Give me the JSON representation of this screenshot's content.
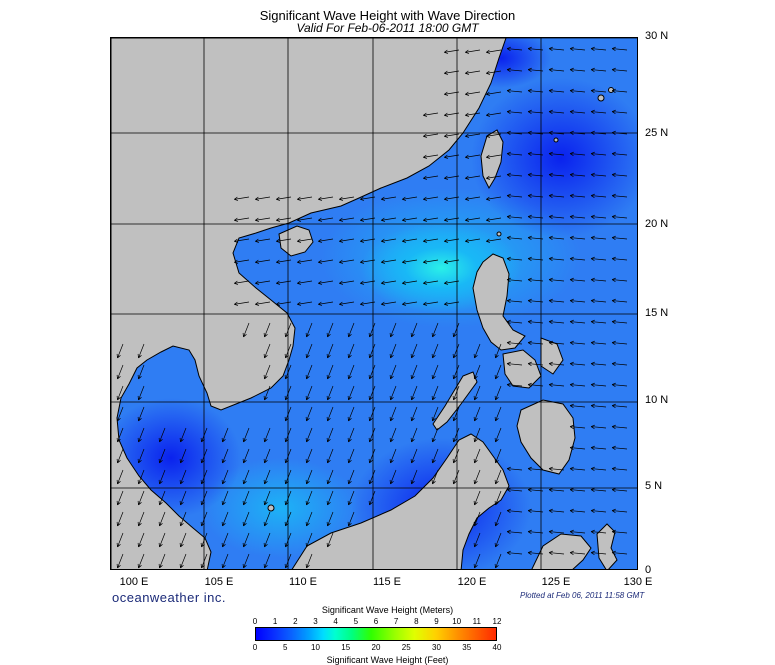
{
  "title": "Significant Wave Height with Wave Direction",
  "subtitle": "Valid For Feb-06-2011 18:00 GMT",
  "lat_labels": [
    "30 N",
    "25 N",
    "20 N",
    "15 N",
    "10 N",
    "5 N",
    "0"
  ],
  "lon_labels": [
    "100 E",
    "105 E",
    "110 E",
    "115 E",
    "120 E",
    "125 E",
    "130 E"
  ],
  "brand": "oceanweather inc.",
  "plotted": "Plotted at Feb 06, 2011 11:58 GMT",
  "colorbar": {
    "title_meters": "Significant Wave Height (Meters)",
    "title_feet": "Significant Wave Height (Feet)",
    "meter_ticks": [
      "0",
      "1",
      "2",
      "3",
      "4",
      "5",
      "6",
      "7",
      "8",
      "9",
      "10",
      "11",
      "12"
    ],
    "feet_ticks": [
      "0",
      "5",
      "10",
      "15",
      "20",
      "25",
      "30",
      "35",
      "40"
    ]
  },
  "colors": {
    "land": "#c0c0c0",
    "sea_low": "#0a32ff",
    "sea_mid": "#2f7df3",
    "sea_high": "#00e0ff",
    "grid": "#000000"
  }
}
